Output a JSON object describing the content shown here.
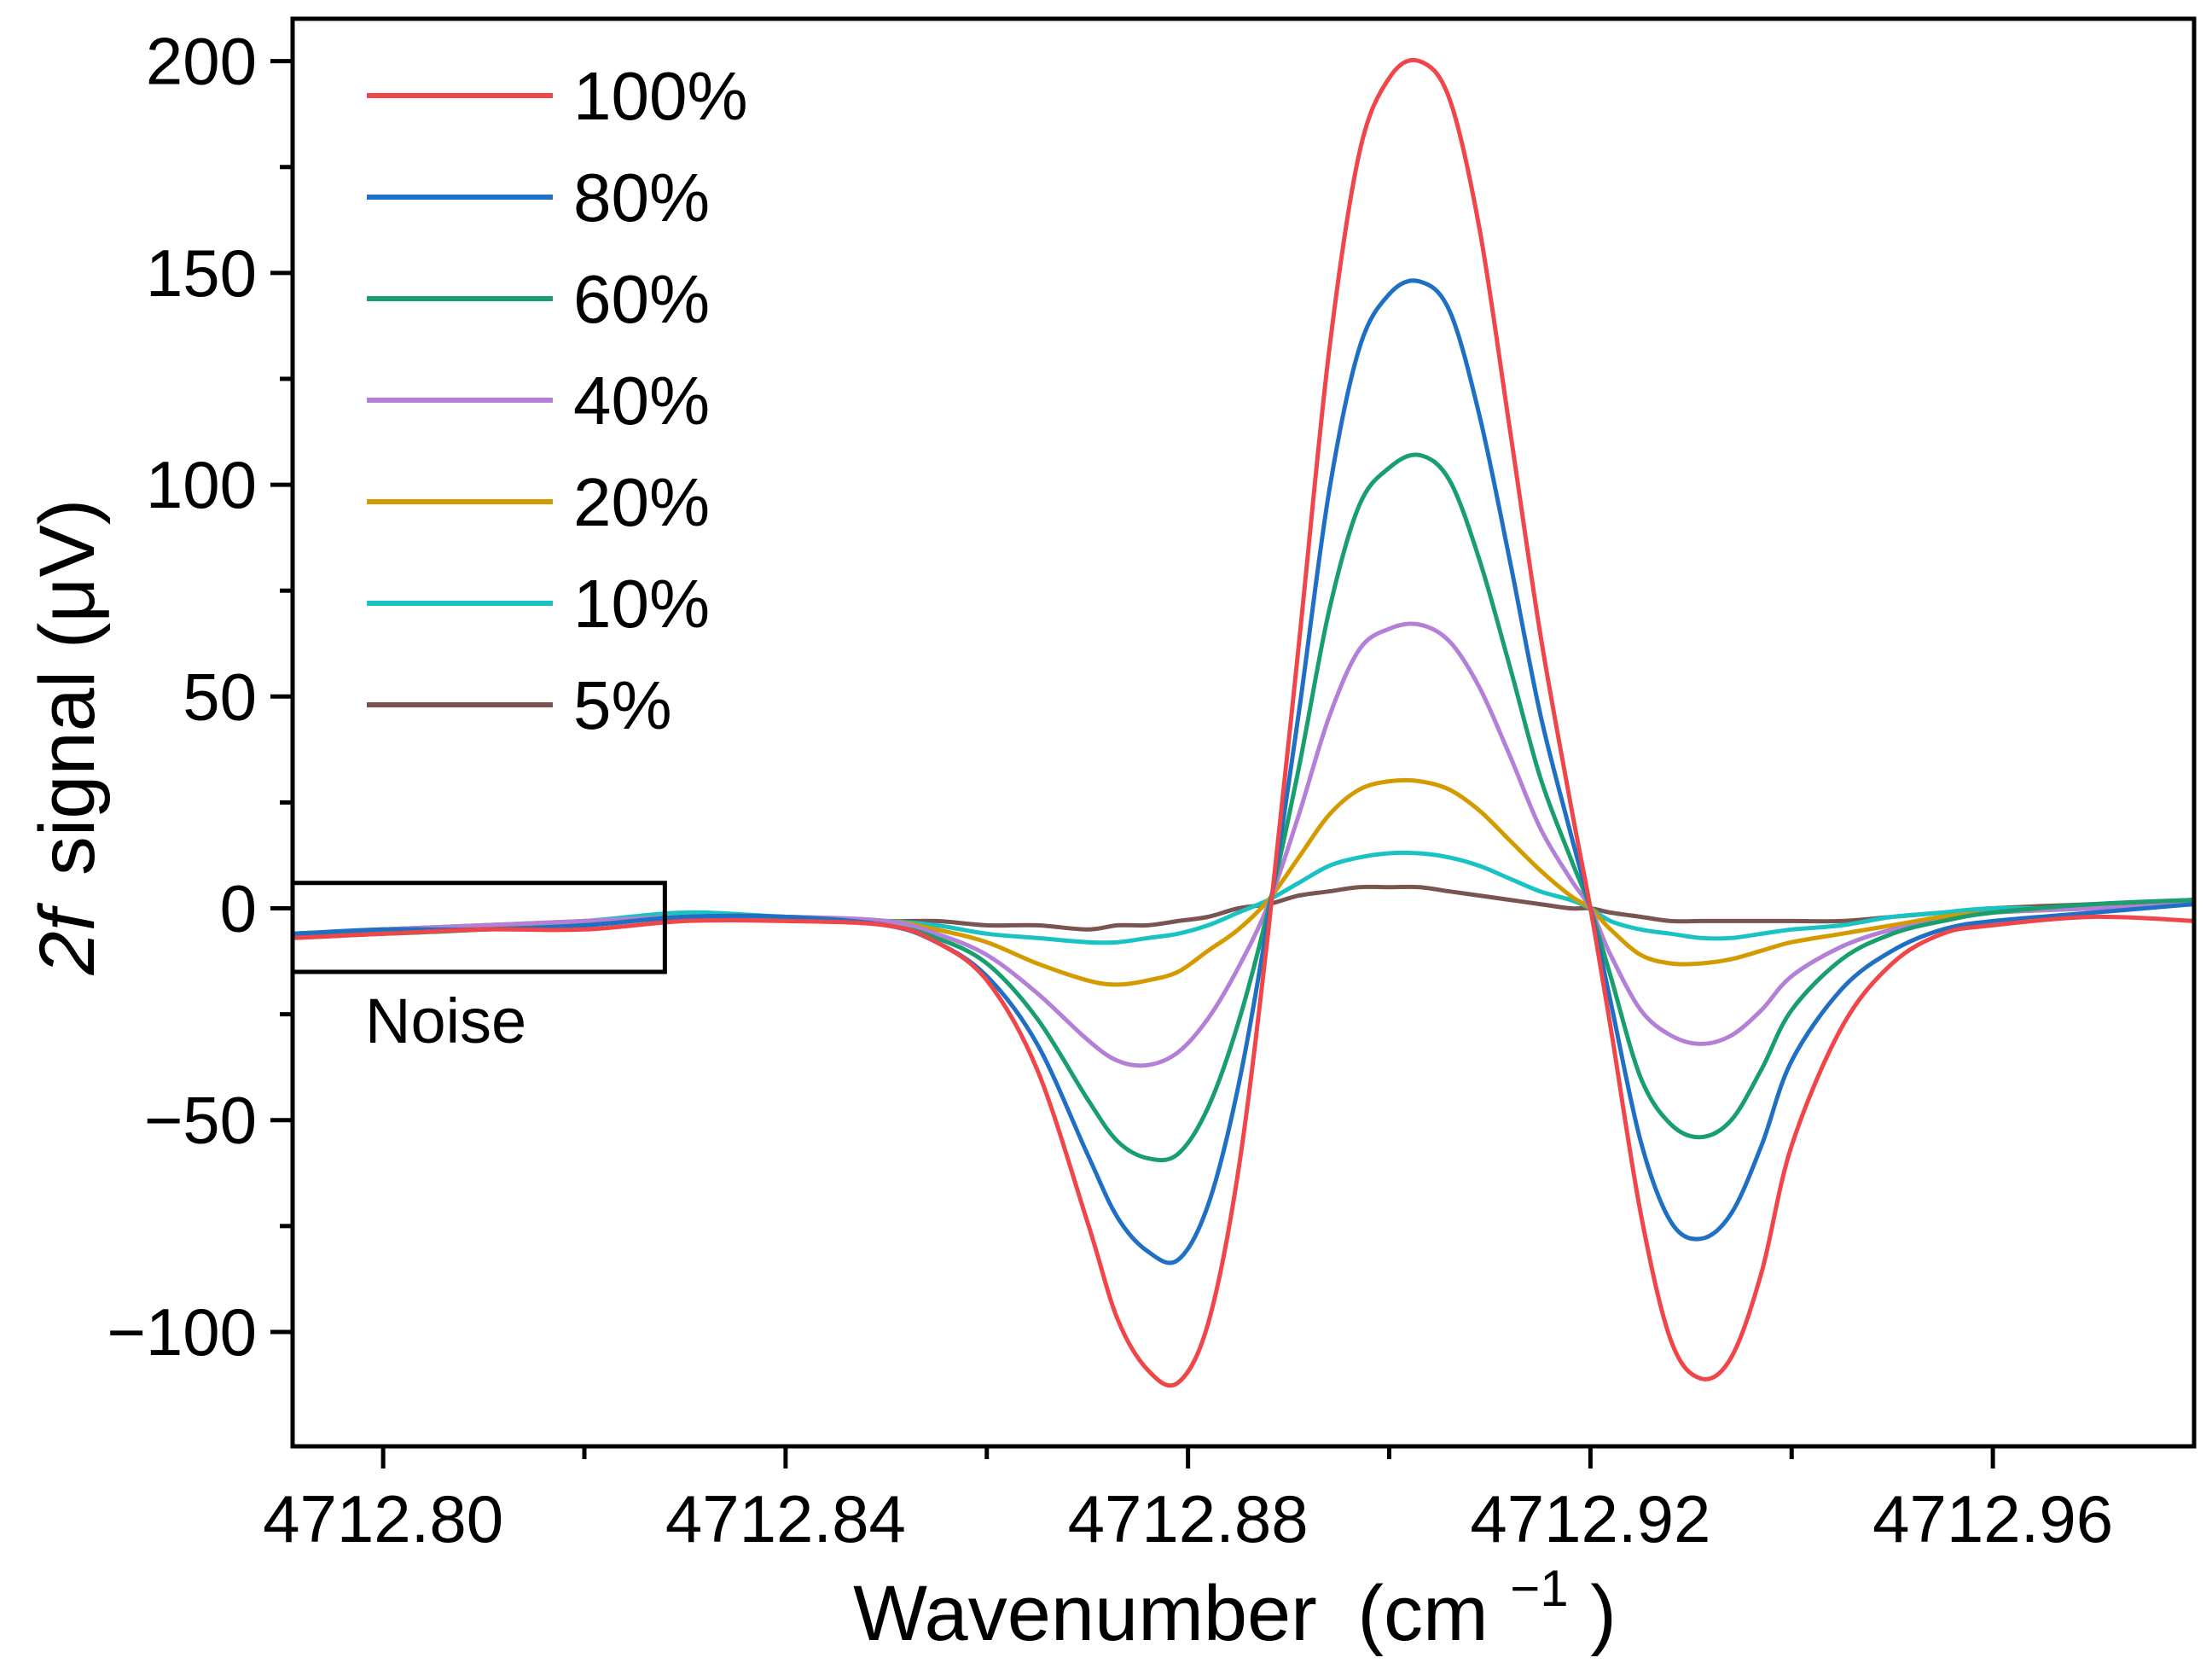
{
  "chart_data": {
    "type": "line",
    "title": "",
    "xlabel": "Wavenumber",
    "xlabel_unit_prefix": "(cm",
    "xlabel_unit_exp": "−1",
    "xlabel_unit_suffix": ")",
    "ylabel": "signal (μV)",
    "ylabel_italic": "2f",
    "xlim": [
      4712.791,
      4712.98
    ],
    "ylim": [
      -127,
      210
    ],
    "xticks": [
      4712.8,
      4712.84,
      4712.88,
      4712.92,
      4712.96
    ],
    "xtick_labels": [
      "4712.80",
      "4712.84",
      "4712.88",
      "4712.92",
      "4712.96"
    ],
    "xticks_minor": [
      4712.82,
      4712.86,
      4712.9,
      4712.94
    ],
    "yticks": [
      -100,
      -50,
      0,
      50,
      100,
      150,
      200
    ],
    "ytick_labels": [
      "−100",
      "−50",
      "0",
      "50",
      "100",
      "150",
      "200"
    ],
    "yticks_minor": [
      -75,
      -25,
      25,
      75,
      125,
      175
    ],
    "grid": false,
    "legend_position": "top-left",
    "series": [
      {
        "name": "100%",
        "color": "#F0464A",
        "x": [
          4712.791,
          4712.8,
          4712.81,
          4712.82,
          4712.83,
          4712.84,
          4712.85,
          4712.855,
          4712.86,
          4712.865,
          4712.87,
          4712.873,
          4712.876,
          4712.879,
          4712.882,
          4712.885,
          4712.888,
          4712.891,
          4712.894,
          4712.897,
          4712.9,
          4712.903,
          4712.906,
          4712.909,
          4712.912,
          4712.915,
          4712.918,
          4712.92,
          4712.922,
          4712.925,
          4712.928,
          4712.931,
          4712.934,
          4712.937,
          4712.94,
          4712.945,
          4712.95,
          4712.955,
          4712.96,
          4712.97,
          4712.98
        ],
        "y": [
          -7,
          -6,
          -5,
          -5,
          -3,
          -3,
          -4,
          -8,
          -17,
          -38,
          -74,
          -97,
          -109,
          -112,
          -98,
          -62,
          -5,
          62,
          131,
          178,
          196,
          200,
          191,
          160,
          113,
          65,
          25,
          0,
          -28,
          -72,
          -102,
          -111,
          -106,
          -86,
          -56,
          -28,
          -13,
          -6,
          -4,
          -2,
          -3
        ]
      },
      {
        "name": "80%",
        "color": "#1F6FC5",
        "x": [
          4712.791,
          4712.8,
          4712.81,
          4712.82,
          4712.83,
          4712.84,
          4712.85,
          4712.855,
          4712.86,
          4712.865,
          4712.87,
          4712.873,
          4712.876,
          4712.879,
          4712.882,
          4712.885,
          4712.888,
          4712.891,
          4712.894,
          4712.897,
          4712.9,
          4712.903,
          4712.906,
          4712.909,
          4712.912,
          4712.915,
          4712.918,
          4712.92,
          4712.922,
          4712.925,
          4712.928,
          4712.931,
          4712.934,
          4712.937,
          4712.94,
          4712.945,
          4712.95,
          4712.955,
          4712.96,
          4712.97,
          4712.98
        ],
        "y": [
          -6,
          -5,
          -5,
          -4,
          -2,
          -2,
          -4,
          -8,
          -16,
          -32,
          -58,
          -73,
          -81,
          -83,
          -70,
          -42,
          -2,
          46,
          98,
          132,
          145,
          148,
          141,
          116,
          82,
          46,
          18,
          0,
          -22,
          -55,
          -74,
          -78,
          -72,
          -56,
          -36,
          -19,
          -10,
          -5,
          -3,
          -1,
          1
        ]
      },
      {
        "name": "60%",
        "color": "#199E6E",
        "x": [
          4712.791,
          4712.8,
          4712.81,
          4712.82,
          4712.83,
          4712.84,
          4712.85,
          4712.855,
          4712.86,
          4712.865,
          4712.87,
          4712.873,
          4712.876,
          4712.879,
          4712.882,
          4712.885,
          4712.888,
          4712.891,
          4712.894,
          4712.897,
          4712.9,
          4712.903,
          4712.906,
          4712.909,
          4712.912,
          4712.915,
          4712.918,
          4712.92,
          4712.922,
          4712.925,
          4712.928,
          4712.931,
          4712.934,
          4712.937,
          4712.94,
          4712.945,
          4712.95,
          4712.955,
          4712.96,
          4712.97,
          4712.98
        ],
        "y": [
          -6,
          -6,
          -5,
          -4,
          -2,
          -2,
          -4,
          -7,
          -13,
          -26,
          -45,
          -55,
          -59,
          -58,
          -47,
          -27,
          0,
          33,
          70,
          95,
          104,
          107,
          101,
          82,
          57,
          31,
          12,
          0,
          -16,
          -40,
          -51,
          -54,
          -50,
          -38,
          -24,
          -12,
          -6,
          -3,
          -1,
          1,
          2
        ]
      },
      {
        "name": "40%",
        "color": "#B47FD6",
        "x": [
          4712.791,
          4712.8,
          4712.81,
          4712.82,
          4712.83,
          4712.84,
          4712.85,
          4712.855,
          4712.86,
          4712.865,
          4712.87,
          4712.873,
          4712.876,
          4712.879,
          4712.882,
          4712.885,
          4712.888,
          4712.891,
          4712.894,
          4712.897,
          4712.9,
          4712.903,
          4712.906,
          4712.909,
          4712.912,
          4712.915,
          4712.918,
          4712.92,
          4712.922,
          4712.925,
          4712.928,
          4712.931,
          4712.934,
          4712.937,
          4712.94,
          4712.945,
          4712.95,
          4712.955,
          4712.96,
          4712.97,
          4712.98
        ],
        "y": [
          -6,
          -5,
          -4,
          -3,
          -2,
          -2,
          -3,
          -6,
          -11,
          -20,
          -31,
          -36,
          -37,
          -34,
          -26,
          -14,
          1,
          22,
          45,
          61,
          66,
          67,
          63,
          52,
          36,
          19,
          7,
          0,
          -11,
          -24,
          -30,
          -32,
          -30,
          -24,
          -16,
          -9,
          -5,
          -3,
          -1,
          0,
          1
        ]
      },
      {
        "name": "20%",
        "color": "#D39B00",
        "x": [
          4712.791,
          4712.8,
          4712.81,
          4712.82,
          4712.83,
          4712.84,
          4712.85,
          4712.855,
          4712.86,
          4712.865,
          4712.87,
          4712.873,
          4712.876,
          4712.879,
          4712.882,
          4712.885,
          4712.888,
          4712.891,
          4712.894,
          4712.897,
          4712.9,
          4712.903,
          4712.906,
          4712.909,
          4712.912,
          4712.915,
          4712.918,
          4712.92,
          4712.922,
          4712.925,
          4712.928,
          4712.931,
          4712.934,
          4712.937,
          4712.94,
          4712.945,
          4712.95,
          4712.955,
          4712.96,
          4712.97,
          4712.98
        ],
        "y": [
          -6,
          -5,
          -4,
          -3,
          -2,
          -2,
          -3,
          -5,
          -8,
          -13,
          -17,
          -18,
          -17,
          -15,
          -10,
          -5,
          2,
          12,
          22,
          28,
          30,
          30,
          28,
          23,
          16,
          9,
          3,
          0,
          -5,
          -11,
          -13,
          -13,
          -12,
          -10,
          -8,
          -6,
          -4,
          -2,
          -1,
          0,
          1
        ]
      },
      {
        "name": "10%",
        "color": "#19C3C4",
        "x": [
          4712.791,
          4712.8,
          4712.81,
          4712.82,
          4712.83,
          4712.84,
          4712.85,
          4712.855,
          4712.86,
          4712.865,
          4712.87,
          4712.873,
          4712.876,
          4712.879,
          4712.882,
          4712.885,
          4712.888,
          4712.891,
          4712.894,
          4712.897,
          4712.9,
          4712.903,
          4712.906,
          4712.909,
          4712.912,
          4712.915,
          4712.918,
          4712.92,
          4712.922,
          4712.925,
          4712.928,
          4712.931,
          4712.934,
          4712.937,
          4712.94,
          4712.945,
          4712.95,
          4712.955,
          4712.96,
          4712.97,
          4712.98
        ],
        "y": [
          -6,
          -5,
          -4,
          -3,
          -1,
          -2,
          -3,
          -4,
          -6,
          -7,
          -8,
          -8,
          -7,
          -6,
          -4,
          -1,
          2,
          6,
          10,
          12,
          13,
          13,
          12,
          10,
          7,
          4,
          2,
          0,
          -3,
          -5,
          -6,
          -7,
          -7,
          -6,
          -5,
          -4,
          -2,
          -1,
          0,
          0,
          1
        ]
      },
      {
        "name": "5%",
        "color": "#7A5550",
        "x": [
          4712.791,
          4712.8,
          4712.81,
          4712.82,
          4712.83,
          4712.84,
          4712.85,
          4712.855,
          4712.86,
          4712.865,
          4712.87,
          4712.873,
          4712.876,
          4712.879,
          4712.882,
          4712.885,
          4712.888,
          4712.891,
          4712.894,
          4712.897,
          4712.9,
          4712.903,
          4712.906,
          4712.909,
          4712.912,
          4712.915,
          4712.918,
          4712.92,
          4712.922,
          4712.925,
          4712.928,
          4712.931,
          4712.934,
          4712.937,
          4712.94,
          4712.945,
          4712.95,
          4712.955,
          4712.96,
          4712.97,
          4712.98
        ],
        "y": [
          -7,
          -6,
          -5,
          -4,
          -2,
          -2,
          -3,
          -3,
          -4,
          -4,
          -5,
          -4,
          -4,
          -3,
          -2,
          0,
          1,
          3,
          4,
          5,
          5,
          5,
          4,
          3,
          2,
          1,
          0,
          0,
          -1,
          -2,
          -3,
          -3,
          -3,
          -3,
          -3,
          -3,
          -2,
          -1,
          0,
          1,
          2
        ]
      }
    ],
    "annotations": [
      {
        "label": "Noise",
        "box_x": [
          4712.791,
          4712.828
        ],
        "box_y": [
          -15,
          6
        ]
      }
    ]
  }
}
